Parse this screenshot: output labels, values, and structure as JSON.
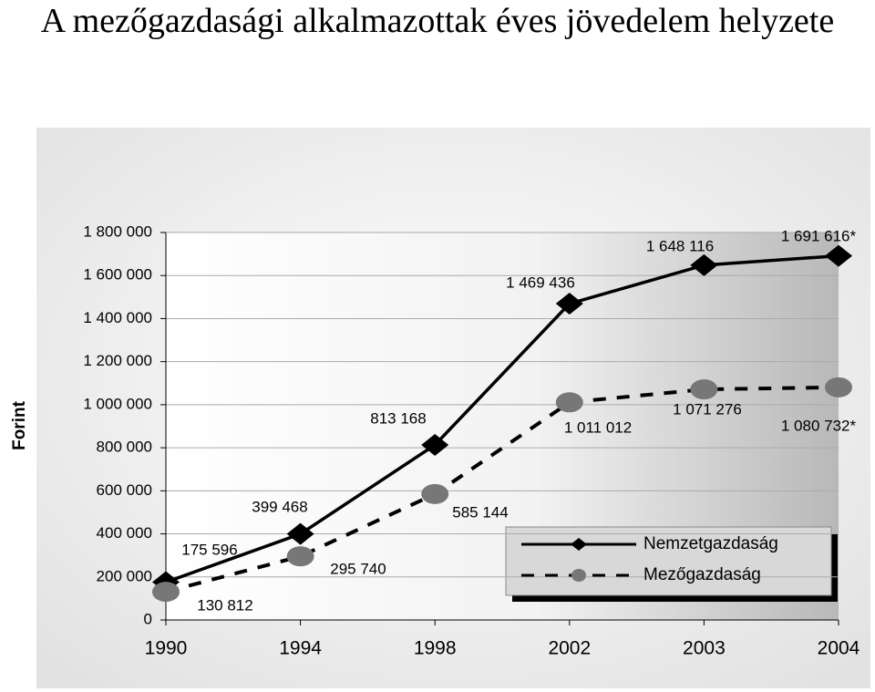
{
  "chart_data": {
    "type": "line",
    "title": "A mezőgazdasági alkalmazottak éves jövedelem helyzete",
    "y_label": "Forint",
    "categories": [
      "1990",
      "1994",
      "1998",
      "2002",
      "2003",
      "2004"
    ],
    "ylim": [
      0,
      1800000
    ],
    "yticks": [
      0,
      {
        "value": 200000,
        "label": "200 000"
      },
      {
        "value": 400000,
        "label": "400 000"
      },
      {
        "value": 600000,
        "label": "600 000"
      },
      {
        "value": 800000,
        "label": "800 000"
      },
      {
        "value": 1000000,
        "label": "1 000 000"
      },
      {
        "value": 1200000,
        "label": "1 200 000"
      },
      {
        "value": 1400000,
        "label": "1 400 000"
      },
      {
        "value": 1600000,
        "label": "1 600 000"
      },
      {
        "value": 1800000,
        "label": "1 800 000"
      }
    ],
    "grid": true,
    "legend": "lower right",
    "series": [
      {
        "name": "Nemzetgazdaság",
        "color": "#000000",
        "marker": "diamond",
        "dashed": false,
        "values": [
          175596,
          399468,
          813168,
          1469436,
          1648116,
          1691616
        ],
        "value_labels": [
          "175 596",
          "399 468",
          "813 168",
          "1 469 436",
          "1 648 116",
          "1 691 616*"
        ]
      },
      {
        "name": "Mezőgazdaság",
        "color": "#000000",
        "marker_color": "#777777",
        "marker": "circle",
        "dashed": true,
        "values": [
          130812,
          295740,
          585144,
          1011012,
          1071276,
          1080732
        ],
        "value_labels": [
          "130 812",
          "295 740",
          "585 144",
          "1 011 012",
          "1 071 276",
          "1 080 732*"
        ]
      }
    ]
  }
}
